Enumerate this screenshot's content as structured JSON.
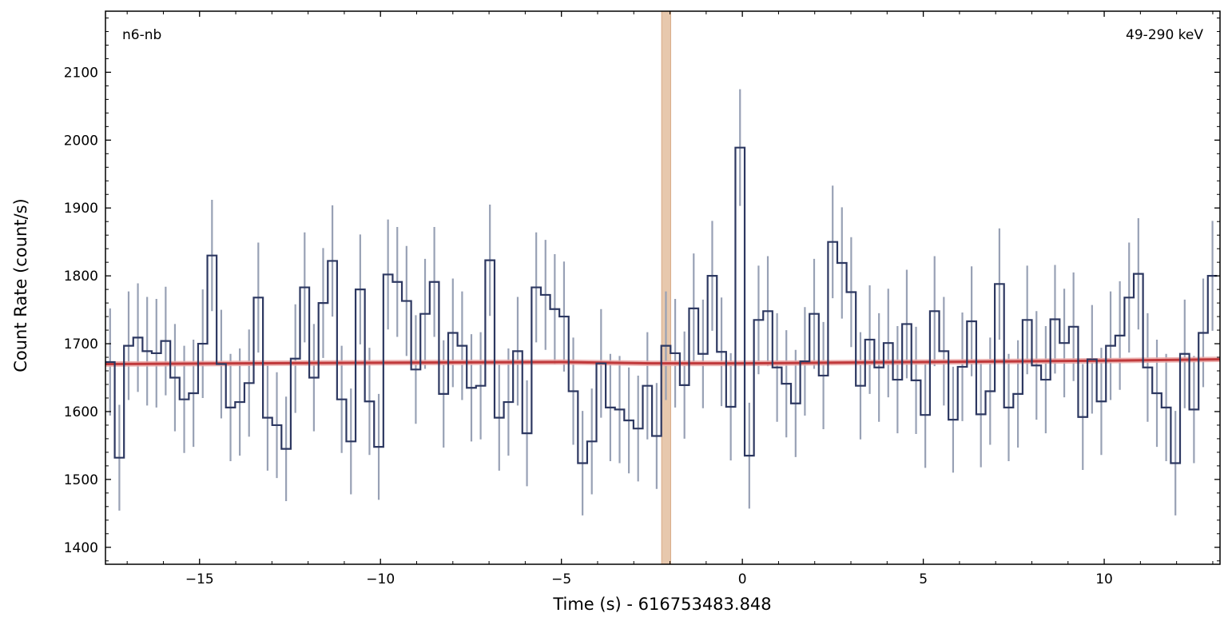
{
  "chart_data": {
    "type": "line",
    "xlabel": "Time (s) - 616753483.848",
    "ylabel": "Count Rate (count/s)",
    "detector": "n6-nb",
    "energy_range": "49-290 keV",
    "xlim": [
      -17.6,
      13.2
    ],
    "ylim": [
      1375,
      2190
    ],
    "x_ticks": [
      -15,
      -10,
      -5,
      0,
      5,
      10
    ],
    "x_tick_labels": [
      "−15",
      "−10",
      "−5",
      "0",
      "5",
      "10"
    ],
    "y_ticks": [
      1400,
      1500,
      1600,
      1700,
      1800,
      1900,
      2000,
      2100
    ],
    "y_tick_labels": [
      "1400",
      "1500",
      "1600",
      "1700",
      "1800",
      "1900",
      "2000",
      "2100"
    ],
    "bin_width": 0.256,
    "x_start": -17.6,
    "series": [
      {
        "type": "step-lightcurve",
        "values": [
          1673,
          1532,
          1697,
          1709,
          1689,
          1686,
          1704,
          1650,
          1618,
          1627,
          1700,
          1830,
          1670,
          1606,
          1614,
          1642,
          1768,
          1591,
          1580,
          1545,
          1678,
          1783,
          1650,
          1760,
          1822,
          1618,
          1556,
          1780,
          1615,
          1548,
          1802,
          1791,
          1763,
          1662,
          1744,
          1791,
          1626,
          1716,
          1697,
          1635,
          1638,
          1823,
          1591,
          1614,
          1689,
          1568,
          1783,
          1772,
          1751,
          1740,
          1630,
          1524,
          1556,
          1671,
          1606,
          1603,
          1587,
          1575,
          1638,
          1564,
          1697,
          1686,
          1639,
          1752,
          1685,
          1800,
          1688,
          1607,
          1989,
          1535,
          1735,
          1748,
          1665,
          1641,
          1612,
          1674,
          1744,
          1653,
          1850,
          1819,
          1776,
          1638,
          1706,
          1665,
          1701,
          1647,
          1729,
          1646,
          1595,
          1748,
          1689,
          1588,
          1666,
          1733,
          1596,
          1630,
          1788,
          1606,
          1626,
          1735,
          1668,
          1647,
          1736,
          1701,
          1725,
          1592,
          1677,
          1615,
          1697,
          1712,
          1768,
          1803,
          1665,
          1627,
          1606,
          1524,
          1685,
          1603,
          1716,
          1800
        ],
        "errors": [
          79,
          78,
          80,
          80,
          80,
          80,
          80,
          79,
          79,
          79,
          80,
          82,
          80,
          79,
          79,
          79,
          81,
          78,
          78,
          77,
          80,
          81,
          79,
          81,
          82,
          79,
          78,
          81,
          79,
          78,
          81,
          81,
          81,
          80,
          81,
          81,
          79,
          80,
          80,
          79,
          79,
          82,
          78,
          79,
          80,
          78,
          81,
          81,
          81,
          81,
          79,
          77,
          78,
          80,
          79,
          79,
          78,
          78,
          79,
          78,
          80,
          80,
          79,
          81,
          80,
          81,
          80,
          79,
          86,
          78,
          80,
          81,
          80,
          79,
          79,
          80,
          81,
          79,
          83,
          82,
          81,
          79,
          80,
          80,
          80,
          79,
          80,
          79,
          78,
          81,
          80,
          78,
          80,
          81,
          78,
          79,
          82,
          79,
          79,
          80,
          80,
          79,
          80,
          80,
          80,
          78,
          80,
          79,
          80,
          80,
          81,
          82,
          80,
          79,
          79,
          77,
          80,
          79,
          80,
          81
        ]
      },
      {
        "name": "background",
        "type": "line",
        "x": [
          -17.6,
          -10,
          -5,
          -2.5,
          0,
          5,
          10,
          13.2
        ],
        "y": [
          1670,
          1672,
          1673,
          1671,
          1671,
          1673,
          1675,
          1677
        ]
      }
    ],
    "source_interval": [
      -2.23,
      -1.98
    ],
    "colors": {
      "lightcurve": "#2d3861",
      "errorbar": "#98a1b5",
      "background": "#c0393b",
      "background_band": "#e9a6a4",
      "source_interval": "#e7c8ad"
    }
  }
}
